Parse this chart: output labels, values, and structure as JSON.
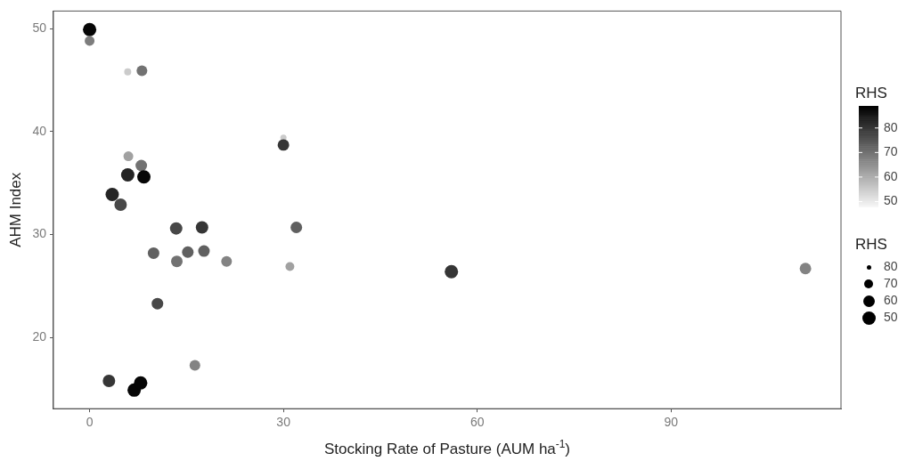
{
  "chart_data": {
    "type": "bubble",
    "xlabel": "Stocking Rate of Pasture (AUM ha$^{-1}$)",
    "ylabel": "AHM Index",
    "clabel": "RHS",
    "legend_title": "RHS",
    "xlim": [
      -5.6,
      116.3
    ],
    "xticks": [
      0,
      30,
      60,
      90
    ],
    "ylim": [
      13.1,
      51.7
    ],
    "yticks": [
      20,
      30,
      40,
      50
    ],
    "clim": [
      48,
      89
    ],
    "cticks": [
      50,
      60,
      70,
      80
    ],
    "grid": false,
    "annotations": [
      "80",
      "70",
      "60",
      "50"
    ],
    "x": [
      0,
      0,
      5.9,
      8.1,
      30,
      30,
      6.0,
      8.0,
      5.9,
      8.4,
      3.5,
      4.8,
      13.4,
      17.4,
      32.0,
      9.9,
      13.5,
      15.2,
      17.7,
      21.2,
      31.0,
      10.5,
      16.3,
      3.0,
      6.9,
      7.9,
      56.0,
      110.8
    ],
    "values": [
      49.9,
      48.8,
      45.8,
      45.9,
      39.4,
      38.7,
      37.6,
      36.7,
      35.8,
      35.6,
      33.9,
      32.9,
      30.6,
      30.7,
      30.7,
      28.2,
      27.4,
      28.3,
      28.4,
      27.4,
      26.9,
      23.3,
      17.3,
      15.8,
      14.9,
      15.6,
      26.4,
      26.7
    ],
    "sizes": [
      1,
      0.54,
      0.28,
      0.64,
      0.22,
      0.75,
      0.54,
      0.75,
      1,
      1,
      1,
      0.87,
      0.87,
      0.87,
      0.75,
      0.75,
      0.75,
      0.75,
      0.75,
      0.64,
      0.44,
      0.75,
      0.64,
      0.87,
      1,
      1,
      1,
      0.75
    ],
    "cvalues": [
      88,
      68,
      55,
      70,
      55,
      80,
      62,
      70,
      83,
      88,
      83,
      77,
      77,
      80,
      73,
      73,
      70,
      73,
      73,
      67,
      62,
      77,
      67,
      80,
      88,
      88,
      80,
      67
    ]
  }
}
